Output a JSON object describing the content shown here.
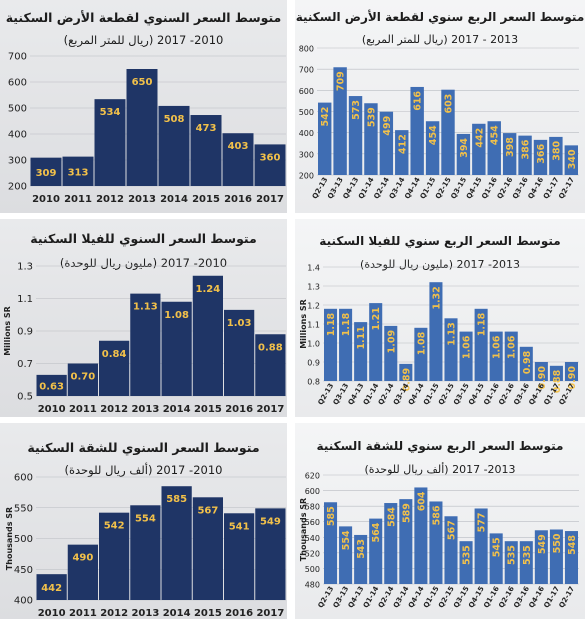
{
  "colors": {
    "annual_bar": "#1f3566",
    "quarterly_bar": "#3f6db3",
    "annual_label": "#f2c14a",
    "quarterly_label": "#f2c14a"
  },
  "panels": [
    {
      "id": "annual-land",
      "title": "متوسط السعر السنوي لقطعة الأرض السكنية",
      "subtitle": "(ريال للمتر المربع) 2010- 2017",
      "ylabel": "",
      "chart_data": {
        "type": "bar",
        "categories": [
          "2010",
          "2011",
          "2012",
          "2013",
          "2014",
          "2015",
          "2016",
          "2017"
        ],
        "values": [
          309,
          313,
          534,
          650,
          508,
          473,
          403,
          360
        ],
        "value_labels": [
          "309",
          "313",
          "534",
          "650",
          "508",
          "473",
          "403",
          "360"
        ],
        "ylim": [
          200,
          700
        ],
        "yticks": [
          200,
          300,
          400,
          500,
          600,
          700
        ],
        "ytick_labels": [
          "200",
          "300",
          "400",
          "500",
          "600",
          "700"
        ]
      }
    },
    {
      "id": "quarterly-land",
      "title": "متوسط السعر الربع سنوي لقطعة الأرض السكنية",
      "subtitle": "(ريال للمتر المربع) 2013 - 2017",
      "ylabel": "",
      "chart_data": {
        "type": "bar",
        "categories": [
          "Q2-13",
          "Q3-13",
          "Q4-13",
          "Q1-14",
          "Q2-14",
          "Q3-14",
          "Q4-14",
          "Q1-15",
          "Q2-15",
          "Q3-15",
          "Q4-15",
          "Q1-16",
          "Q2-16",
          "Q3-16",
          "Q4-16",
          "Q1-17",
          "Q2-17"
        ],
        "values": [
          542,
          709,
          573,
          539,
          499,
          412,
          616,
          454,
          603,
          394,
          442,
          454,
          398,
          386,
          366,
          380,
          340
        ],
        "value_labels": [
          "542",
          "709",
          "573",
          "539",
          "499",
          "412",
          "616",
          "454",
          "603",
          "394",
          "442",
          "454",
          "398",
          "386",
          "366",
          "380",
          "340"
        ],
        "ylim": [
          200,
          800
        ],
        "yticks": [
          200,
          300,
          400,
          500,
          600,
          700,
          800
        ],
        "ytick_labels": [
          "200",
          "300",
          "400",
          "500",
          "600",
          "700",
          "800"
        ]
      }
    },
    {
      "id": "annual-villa",
      "title": "متوسط السعر السنوي للفيلا السكنية",
      "subtitle": "(مليون ريال للوحدة) 2010- 2017",
      "ylabel": "Millions SR",
      "chart_data": {
        "type": "bar",
        "categories": [
          "2010",
          "2011",
          "2012",
          "2013",
          "2014",
          "2015",
          "2016",
          "2017"
        ],
        "values": [
          0.63,
          0.7,
          0.84,
          1.13,
          1.08,
          1.24,
          1.03,
          0.88
        ],
        "value_labels": [
          "0.63",
          "0.70",
          "0.84",
          "1.13",
          "1.08",
          "1.24",
          "1.03",
          "0.88"
        ],
        "ylim": [
          0.5,
          1.3
        ],
        "yticks": [
          0.5,
          0.7,
          0.9,
          1.1,
          1.3
        ],
        "ytick_labels": [
          "0.5",
          "0.7",
          "0.9",
          "1.1",
          "1.3"
        ]
      }
    },
    {
      "id": "quarterly-villa",
      "title": "متوسط السعر الربع سنوي للفيلا السكنية",
      "subtitle": "(مليون ريال للوحدة) 2013- 2017",
      "ylabel": "Millions SR",
      "chart_data": {
        "type": "bar",
        "categories": [
          "Q2-13",
          "Q3-13",
          "Q4-13",
          "Q1-14",
          "Q2-14",
          "Q3-14",
          "Q4-14",
          "Q1-15",
          "Q2-15",
          "Q3-15",
          "Q4-15",
          "Q1-16",
          "Q2-16",
          "Q3-16",
          "Q4-16",
          "Q1-17",
          "Q2-17"
        ],
        "values": [
          1.18,
          1.18,
          1.11,
          1.21,
          1.09,
          0.89,
          1.08,
          1.32,
          1.13,
          1.06,
          1.18,
          1.06,
          1.06,
          0.98,
          0.9,
          0.88,
          0.9
        ],
        "value_labels": [
          "1.18",
          "1.18",
          "1.11",
          "1.21",
          "1.09",
          "0.89",
          "1.08",
          "1.32",
          "1.13",
          "1.06",
          "1.18",
          "1.06",
          "1.06",
          "0.98",
          "0.90",
          "0.88",
          "0.90"
        ],
        "ylim": [
          0.8,
          1.4
        ],
        "yticks": [
          0.8,
          0.9,
          1.0,
          1.1,
          1.2,
          1.3,
          1.4
        ],
        "ytick_labels": [
          "0.8",
          "0.9",
          "1.0",
          "1.1",
          "1.2",
          "1.3",
          "1.4"
        ]
      }
    },
    {
      "id": "annual-apartment",
      "title": "متوسط السعر السنوي للشقة السكنية",
      "subtitle": "(ألف ريال للوحدة) 2010- 2017",
      "ylabel": "Thousands SR",
      "chart_data": {
        "type": "bar",
        "categories": [
          "2010",
          "2011",
          "2012",
          "2013",
          "2014",
          "2015",
          "2016",
          "2017"
        ],
        "values": [
          442,
          490,
          542,
          554,
          585,
          567,
          541,
          549
        ],
        "value_labels": [
          "442",
          "490",
          "542",
          "554",
          "585",
          "567",
          "541",
          "549"
        ],
        "ylim": [
          400,
          600
        ],
        "yticks": [
          400,
          450,
          500,
          550,
          600
        ],
        "ytick_labels": [
          "400",
          "450",
          "500",
          "550",
          "600"
        ]
      }
    },
    {
      "id": "quarterly-apartment",
      "title": "متوسط السعر الربع سنوي للشقة السكنية",
      "subtitle": "(ألف ريال للوحدة) 2013- 2017",
      "ylabel": "Thousands SR",
      "chart_data": {
        "type": "bar",
        "categories": [
          "Q2-13",
          "Q3-13",
          "Q4-13",
          "Q1-14",
          "Q2-14",
          "Q3-14",
          "Q4-14",
          "Q1-15",
          "Q2-15",
          "Q3-15",
          "Q4-15",
          "Q1-16",
          "Q2-16",
          "Q3-16",
          "Q4-16",
          "Q1-17",
          "Q2-17"
        ],
        "values": [
          585,
          554,
          543,
          564,
          584,
          589,
          604,
          586,
          567,
          535,
          577,
          545,
          535,
          535,
          549,
          550,
          548
        ],
        "value_labels": [
          "585",
          "554",
          "543",
          "564",
          "584",
          "589",
          "604",
          "586",
          "567",
          "535",
          "577",
          "545",
          "535",
          "535",
          "549",
          "550",
          "548"
        ],
        "ylim": [
          480,
          620
        ],
        "yticks": [
          480,
          500,
          520,
          540,
          560,
          580,
          600,
          620
        ],
        "ytick_labels": [
          "480",
          "500",
          "520",
          "540",
          "560",
          "580",
          "600",
          "620"
        ]
      }
    }
  ]
}
